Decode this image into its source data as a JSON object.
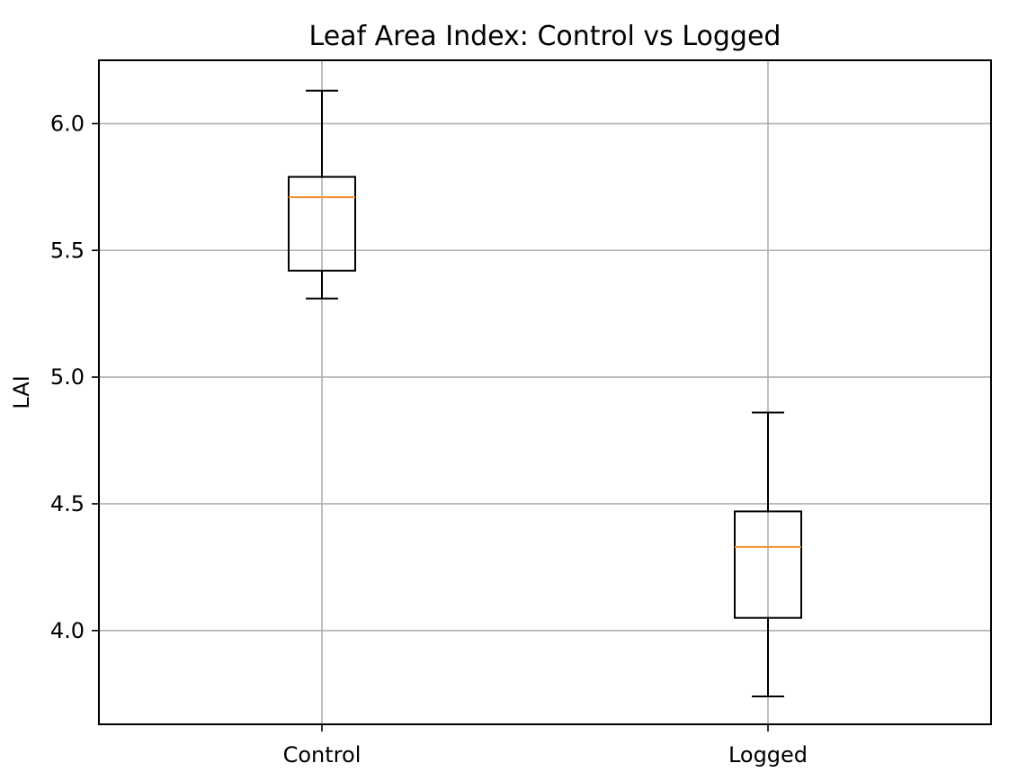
{
  "chart_data": {
    "type": "box",
    "title": "Leaf Area Index: Control vs Logged",
    "xlabel": "",
    "ylabel": "LAI",
    "ylim": [
      3.63,
      6.25
    ],
    "yticks": [
      4.0,
      4.5,
      5.0,
      5.5,
      6.0
    ],
    "ytick_labels": [
      "4.0",
      "4.5",
      "5.0",
      "5.5",
      "6.0"
    ],
    "grid": true,
    "colors": {
      "box": "#000000",
      "median": "#f28e2b",
      "grid": "#b0b0b0"
    },
    "categories": [
      "Control",
      "Logged"
    ],
    "boxes": [
      {
        "category": "Control",
        "whisker_low": 5.31,
        "q1": 5.42,
        "median": 5.71,
        "q3": 5.79,
        "whisker_high": 6.13
      },
      {
        "category": "Logged",
        "whisker_low": 3.74,
        "q1": 4.05,
        "median": 4.33,
        "q3": 4.47,
        "whisker_high": 4.86
      }
    ]
  }
}
